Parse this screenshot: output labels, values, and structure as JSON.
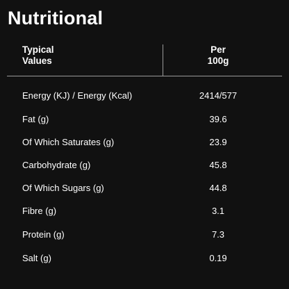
{
  "title": "Nutritional",
  "table": {
    "header": {
      "left_line1": "Typical",
      "left_line2": "Values",
      "right_line1": "Per",
      "right_line2": "100g"
    },
    "rows": [
      {
        "label": "Energy (KJ) / Energy (Kcal)",
        "value": "2414/577"
      },
      {
        "label": "Fat (g)",
        "value": "39.6"
      },
      {
        "label": "Of Which Saturates (g)",
        "value": "23.9"
      },
      {
        "label": "Carbohydrate (g)",
        "value": "45.8"
      },
      {
        "label": "Of Which Sugars (g)",
        "value": "44.8"
      },
      {
        "label": "Fibre (g)",
        "value": "3.1"
      },
      {
        "label": "Protein (g)",
        "value": "7.3"
      },
      {
        "label": "Salt (g)",
        "value": "0.19"
      }
    ]
  },
  "colors": {
    "background": "#111111",
    "text": "#ffffff",
    "rule": "#9a9a9a"
  }
}
